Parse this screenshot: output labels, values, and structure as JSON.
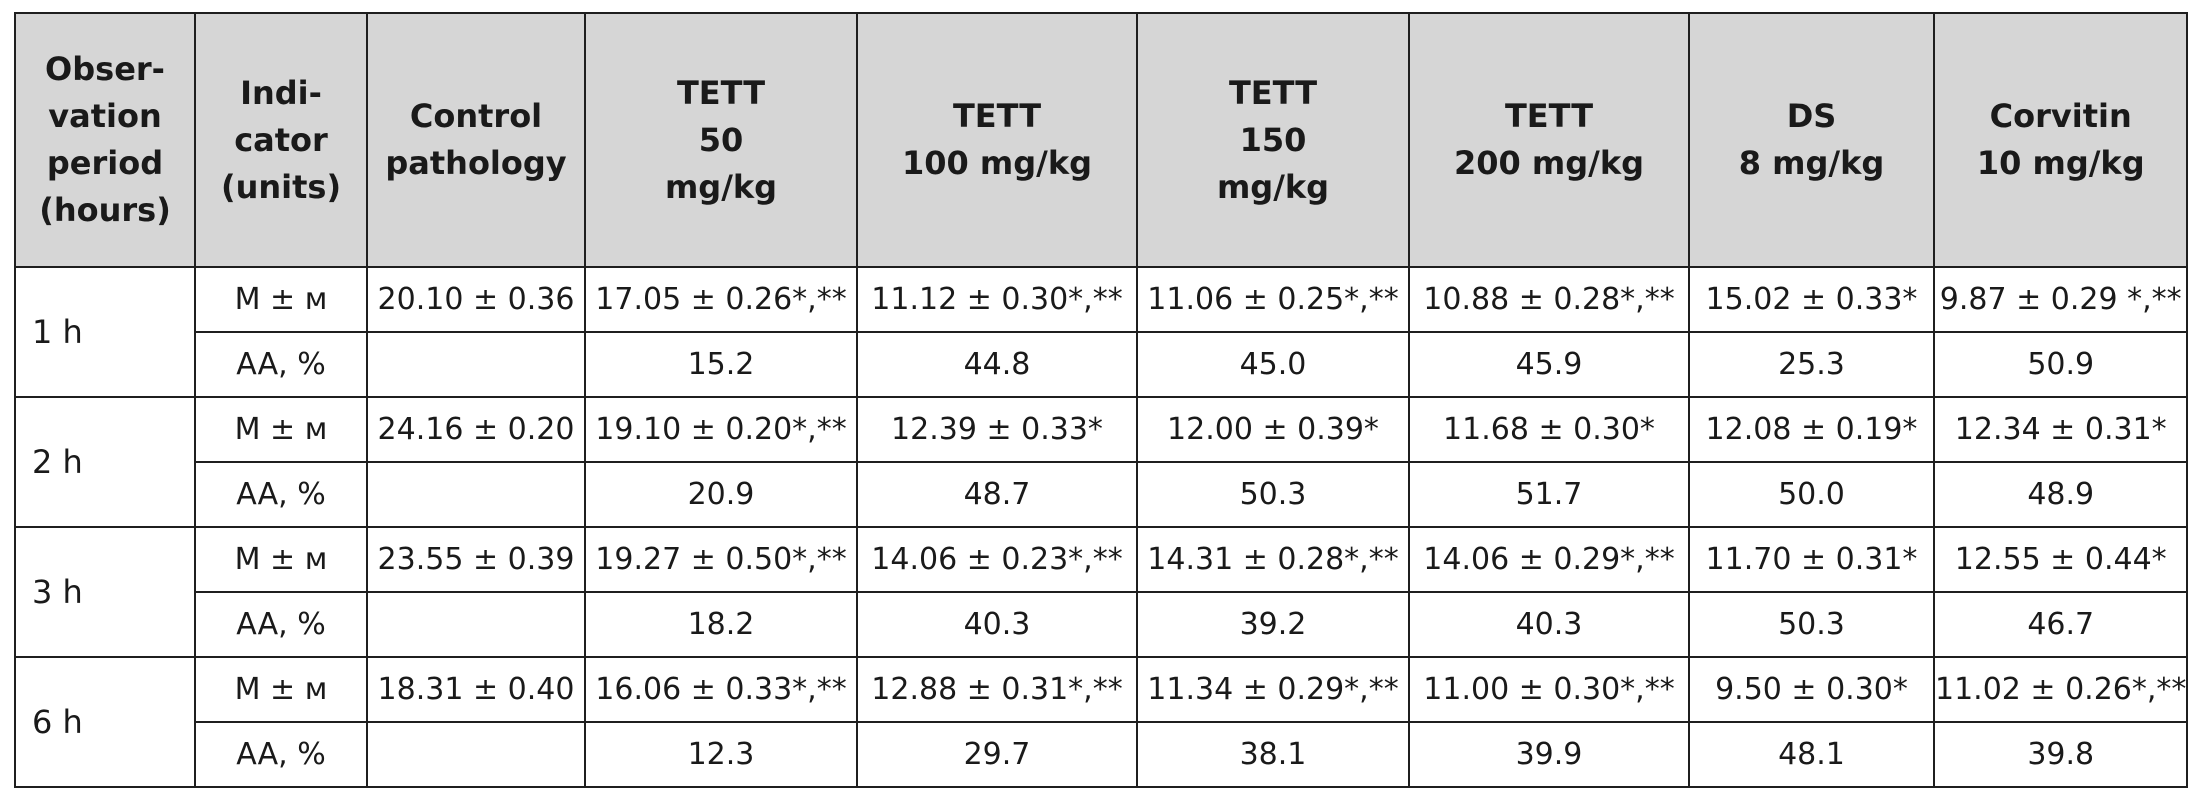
{
  "table": {
    "headers": [
      [
        "Obser-",
        "vation",
        "period",
        "(hours)"
      ],
      [
        "Indi-",
        "cator",
        "(units)"
      ],
      [
        "Control",
        "pathology"
      ],
      [
        "TETT",
        "50",
        "mg/kg"
      ],
      [
        "TETT",
        "100 mg/kg"
      ],
      [
        "TETT",
        "150",
        "mg/kg"
      ],
      [
        "TETT",
        "200 mg/kg"
      ],
      [
        "DS",
        "8 mg/kg"
      ],
      [
        "Corvitin",
        "10 mg/kg"
      ]
    ],
    "groups": [
      {
        "period": "1 h",
        "rows": [
          {
            "indicator": "M ± м",
            "values": [
              "20.10 ± 0.36",
              "17.05 ± 0.26*,**",
              "11.12 ± 0.30*,**",
              "11.06 ± 0.25*,**",
              "10.88 ± 0.28*,**",
              "15.02 ± 0.33*",
              "9.87 ± 0.29 *,**"
            ]
          },
          {
            "indicator": "AA, %",
            "values": [
              "",
              "15.2",
              "44.8",
              "45.0",
              "45.9",
              "25.3",
              "50.9"
            ]
          }
        ]
      },
      {
        "period": "2 h",
        "rows": [
          {
            "indicator": "M ± м",
            "values": [
              "24.16 ± 0.20",
              "19.10 ± 0.20*,**",
              "12.39 ± 0.33*",
              "12.00 ± 0.39*",
              "11.68 ± 0.30*",
              "12.08 ± 0.19*",
              "12.34 ± 0.31*"
            ]
          },
          {
            "indicator": "AA, %",
            "values": [
              "",
              "20.9",
              "48.7",
              "50.3",
              "51.7",
              "50.0",
              "48.9"
            ]
          }
        ]
      },
      {
        "period": "3 h",
        "rows": [
          {
            "indicator": "M ± м",
            "values": [
              "23.55 ± 0.39",
              "19.27 ± 0.50*,**",
              "14.06 ± 0.23*,**",
              "14.31 ± 0.28*,**",
              "14.06 ± 0.29*,**",
              "11.70 ± 0.31*",
              "12.55 ± 0.44*"
            ]
          },
          {
            "indicator": "AA, %",
            "values": [
              "",
              "18.2",
              "40.3",
              "39.2",
              "40.3",
              "50.3",
              "46.7"
            ]
          }
        ]
      },
      {
        "period": "6 h",
        "rows": [
          {
            "indicator": "M ± м",
            "values": [
              "18.31 ± 0.40",
              "16.06 ± 0.33*,**",
              "12.88 ± 0.31*,**",
              "11.34 ± 0.29*,**",
              "11.00 ± 0.30*,**",
              "9.50 ± 0.30*",
              "11.02 ± 0.26*,**"
            ]
          },
          {
            "indicator": "AA, %",
            "values": [
              "",
              "12.3",
              "29.7",
              "38.1",
              "39.9",
              "48.1",
              "39.8"
            ]
          }
        ]
      }
    ]
  }
}
